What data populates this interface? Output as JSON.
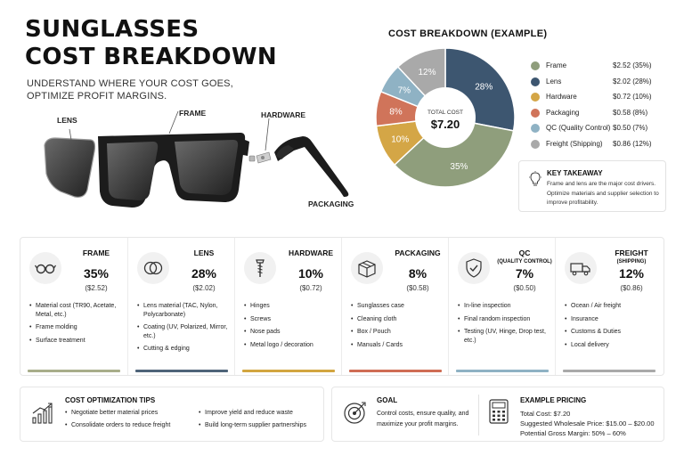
{
  "header": {
    "title_line1": "SUNGLASSES",
    "title_line2": "COST BREAKDOWN",
    "subtitle_line1": "UNDERSTAND WHERE YOUR COST GOES,",
    "subtitle_line2": "OPTIMIZE PROFIT MARGINS."
  },
  "callouts": {
    "lens": "LENS",
    "frame": "FRAME",
    "hardware": "HARDWARE",
    "packaging": "PACKAGING"
  },
  "chart_data": {
    "type": "pie",
    "title": "COST BREAKDOWN (EXAMPLE)",
    "center_label": "TOTAL COST",
    "center_value": "$7.20",
    "labels": [
      "Frame",
      "Lens",
      "Hardware",
      "Packaging",
      "QC (Quality Control)",
      "Freight (Shipping)"
    ],
    "values": [
      2.52,
      2.02,
      0.72,
      0.58,
      0.5,
      0.86
    ],
    "percents": [
      35,
      28,
      10,
      8,
      7,
      12
    ],
    "percent_labels": [
      "35%",
      "28%",
      "10%",
      "8%",
      "7%",
      "12%"
    ],
    "value_labels": [
      "$2.52 (35%)",
      "$2.02 (28%)",
      "$0.72 (10%)",
      "$0.58  (8%)",
      "$0.50  (7%)",
      "$0.86 (12%)"
    ],
    "colors": [
      "#8f9e7c",
      "#3d5670",
      "#d4a646",
      "#d0745a",
      "#8fb2c4",
      "#a9a9a9"
    ],
    "legend_position": "right"
  },
  "takeaway": {
    "title": "KEY TAKEAWAY",
    "text": "Frame and lens are the major cost drivers. Optimize materials and supplier selection to improve profitability.",
    "icon": "lightbulb-icon"
  },
  "cards": [
    {
      "name": "FRAME",
      "subname": "",
      "pct": "35%",
      "amount": "($2.52)",
      "icon": "glasses-icon",
      "color": "#a8ad8a",
      "items": [
        "Material cost (TR90, Acetate, Metal, etc.)",
        "Frame molding",
        "Surface treatment"
      ]
    },
    {
      "name": "LENS",
      "subname": "",
      "pct": "28%",
      "amount": "($2.02)",
      "icon": "lens-icon",
      "color": "#4f6479",
      "items": [
        "Lens material (TAC, Nylon, Polycarbonate)",
        "Coating (UV, Polarized, Mirror, etc.)",
        "Cutting & edging"
      ]
    },
    {
      "name": "HARDWARE",
      "subname": "",
      "pct": "10%",
      "amount": "($0.72)",
      "icon": "screw-icon",
      "color": "#d2a540",
      "items": [
        "Hinges",
        "Screws",
        "Nose pads",
        "Metal logo / decoration"
      ]
    },
    {
      "name": "PACKAGING",
      "subname": "",
      "pct": "8%",
      "amount": "($0.58)",
      "icon": "box-icon",
      "color": "#cf6d54",
      "items": [
        "Sunglasses case",
        "Cleaning cloth",
        "Box / Pouch",
        "Manuals / Cards"
      ]
    },
    {
      "name": "QC",
      "subname": "(QUALITY CONTROL)",
      "pct": "7%",
      "amount": "($0.50)",
      "icon": "shield-check-icon",
      "color": "#8fb2c4",
      "items": [
        "In-line inspection",
        "Final random inspection",
        "Testing (UV, Hinge, Drop test, etc.)"
      ]
    },
    {
      "name": "FREIGHT",
      "subname": "(SHIPPING)",
      "pct": "12%",
      "amount": "($0.86)",
      "icon": "truck-icon",
      "color": "#a9a9a9",
      "items": [
        "Ocean / Air freight",
        "Insurance",
        "Customs & Duties",
        "Local delivery"
      ]
    }
  ],
  "tips": {
    "title": "COST OPTIMIZATION TIPS",
    "icon": "growth-chart-icon",
    "col1": [
      "Negotiate better material prices",
      "Consolidate orders to reduce freight"
    ],
    "col2": [
      "Improve yield and reduce waste",
      "Build long-term supplier partnerships"
    ]
  },
  "goal": {
    "title": "GOAL",
    "icon": "target-icon",
    "text": "Control costs, ensure quality, and maximize your profit margins."
  },
  "pricing": {
    "title": "EXAMPLE PRICING",
    "icon": "calculator-icon",
    "total": "Total Cost: $7.20",
    "wholesale": "Suggested Wholesale Price: $15.00 – $20.00",
    "margin": "Potential Gross Margin: 50% – 60%"
  }
}
